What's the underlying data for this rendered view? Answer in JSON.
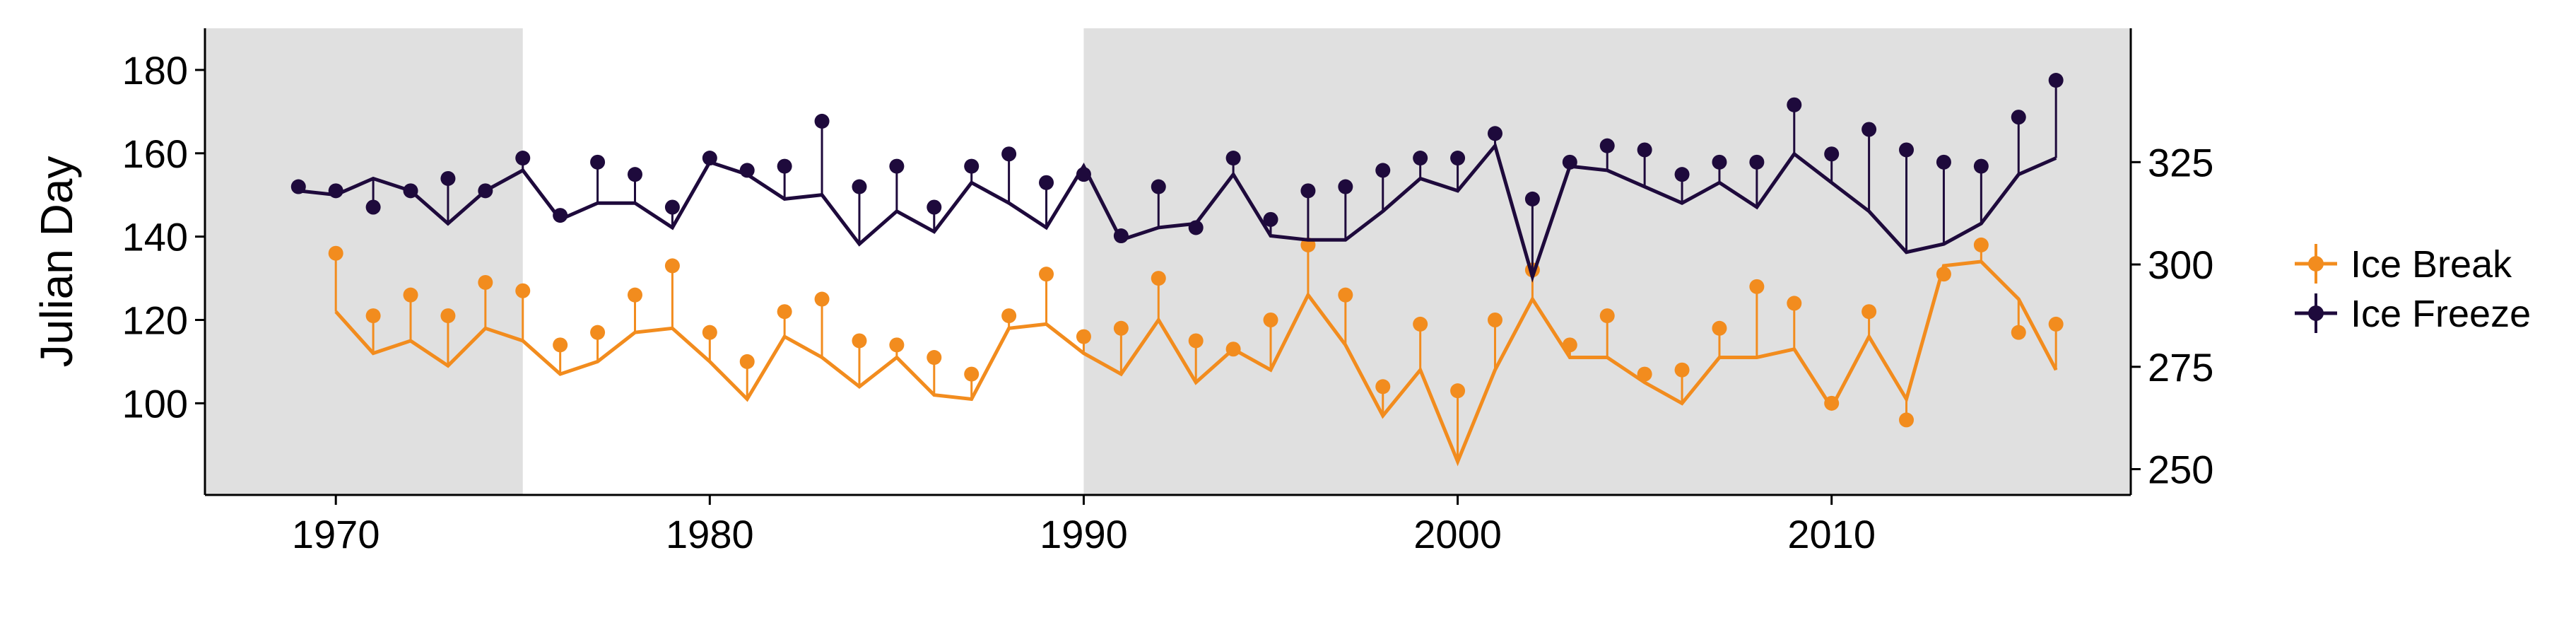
{
  "chart_data": {
    "type": "line",
    "title": "",
    "ylabel": "Julian Day",
    "xlabel": "",
    "xlim": [
      1966.5,
      2018
    ],
    "ylim": [
      78,
      190
    ],
    "ylim_right": [
      243.7,
      357.7
    ],
    "x_ticks": [
      "1970",
      "1980",
      "1990",
      "2000",
      "2010"
    ],
    "y_ticks": [
      "100",
      "120",
      "140",
      "160",
      "180"
    ],
    "y_ticks_right": [
      "250",
      "275",
      "300",
      "325"
    ],
    "shaded_periods": [
      [
        1966.5,
        1975
      ],
      [
        1990,
        2018
      ]
    ],
    "legend_position": "right",
    "colors": {
      "ice_break": "#F28C1E",
      "ice_freeze": "#1E0A3C",
      "shading": "#E0E0E0"
    },
    "series": [
      {
        "name": "Ice Break",
        "axis": "left",
        "x": [
          1970,
          1971,
          1972,
          1973,
          1974,
          1975,
          1976,
          1977,
          1978,
          1979,
          1980,
          1981,
          1982,
          1983,
          1984,
          1985,
          1986,
          1987,
          1988,
          1989,
          1990,
          1991,
          1992,
          1993,
          1994,
          1995,
          1996,
          1997,
          1998,
          1999,
          2000,
          2001,
          2002,
          2003,
          2004,
          2005,
          2006,
          2007,
          2008,
          2009,
          2010,
          2011,
          2012,
          2013,
          2014,
          2015,
          2016
        ],
        "observed": [
          136,
          121,
          126,
          121,
          129,
          127,
          114,
          117,
          126,
          133,
          117,
          110,
          122,
          125,
          115,
          114,
          111,
          107,
          121,
          131,
          116,
          118,
          130,
          115,
          113,
          120,
          138,
          126,
          104,
          119,
          103,
          120,
          132,
          114,
          121,
          107,
          108,
          118,
          128,
          124,
          100,
          122,
          96,
          131,
          138,
          117,
          119
        ],
        "modeled": [
          122,
          112,
          115,
          109,
          118,
          115,
          107,
          110,
          117,
          118,
          110,
          101,
          116,
          111,
          104,
          111,
          102,
          101,
          118,
          119,
          112,
          107,
          120,
          105,
          113,
          108,
          126,
          114,
          97,
          108,
          86,
          108,
          125,
          111,
          111,
          105,
          100,
          111,
          111,
          113,
          99,
          116,
          101,
          133,
          134,
          125,
          108
        ]
      },
      {
        "name": "Ice Freeze",
        "axis": "right",
        "x": [
          1969,
          1970,
          1971,
          1972,
          1973,
          1974,
          1975,
          1976,
          1977,
          1978,
          1979,
          1980,
          1981,
          1982,
          1983,
          1984,
          1985,
          1986,
          1987,
          1988,
          1989,
          1990,
          1991,
          1992,
          1993,
          1994,
          1995,
          1996,
          1997,
          1998,
          1999,
          2000,
          2001,
          2002,
          2003,
          2004,
          2005,
          2006,
          2007,
          2008,
          2009,
          2010,
          2011,
          2012,
          2013,
          2014,
          2015,
          2016
        ],
        "observed": [
          319,
          318,
          314,
          318,
          321,
          318,
          326,
          312,
          325,
          322,
          314,
          326,
          323,
          324,
          335,
          319,
          324,
          314,
          324,
          327,
          320,
          322,
          307,
          319,
          309,
          326,
          311,
          318,
          319,
          323,
          326,
          326,
          332,
          316,
          325,
          329,
          328,
          322,
          325,
          325,
          339,
          327,
          333,
          328,
          325,
          324,
          336,
          345
        ],
        "modeled": [
          318,
          317,
          321,
          318,
          310,
          318,
          323,
          311,
          315,
          315,
          309,
          325,
          322,
          316,
          317,
          305,
          313,
          308,
          320,
          315,
          309,
          324,
          306,
          309,
          310,
          322,
          307,
          306,
          306,
          313,
          321,
          318,
          329,
          297,
          324,
          323,
          319,
          315,
          320,
          314,
          327,
          320,
          313,
          303,
          305,
          310,
          322,
          326
        ]
      }
    ]
  }
}
